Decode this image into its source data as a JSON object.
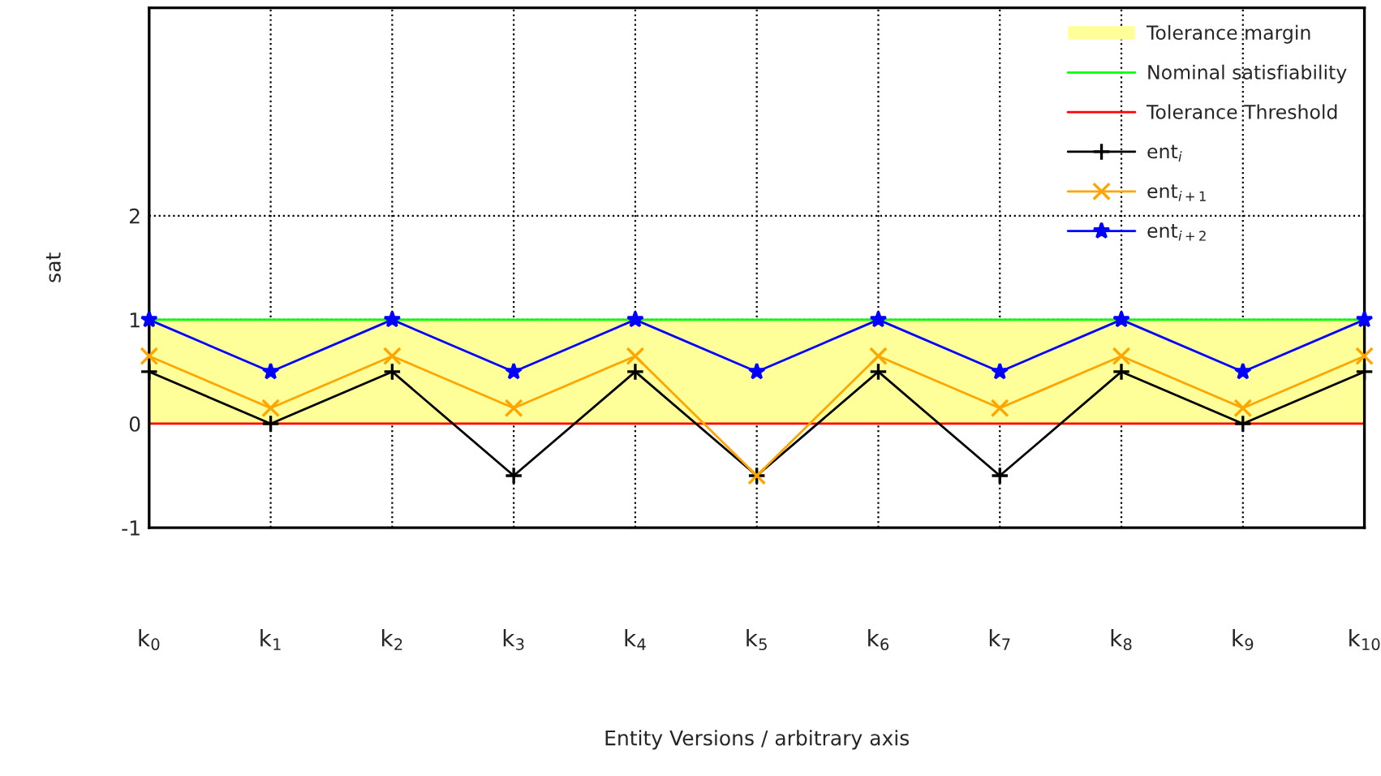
{
  "chart_data": {
    "type": "line",
    "xlabel": "Entity Versions / arbitrary axis",
    "ylabel": "sat",
    "categories": [
      "k$_{0}$",
      "k$_{1}$",
      "k$_{2}$",
      "k$_{3}$",
      "k$_{4}$",
      "k$_{5}$",
      "k$_{6}$",
      "k$_{7}$",
      "k$_{8}$",
      "k$_{9}$",
      "k$_{10}$"
    ],
    "series": [
      {
        "name": "ent$_{i}$",
        "color": "#000000",
        "marker": "cross",
        "values": [
          0.5,
          0,
          0.5,
          -0.5,
          0.5,
          -0.5,
          0.5,
          -0.5,
          0.5,
          0,
          0.5
        ]
      },
      {
        "name": "ent$_{i+1}$",
        "color": "#ffa500",
        "marker": "x",
        "values": [
          0.65,
          0.15,
          0.65,
          0.15,
          0.65,
          -0.5,
          0.65,
          0.15,
          0.65,
          0.15,
          0.65
        ]
      },
      {
        "name": "ent$_{i+2}$",
        "color": "#0000ff",
        "marker": "star",
        "values": [
          1,
          0.5,
          1,
          0.5,
          1,
          0.5,
          1,
          0.5,
          1,
          0.5,
          1
        ]
      }
    ],
    "bands": [
      {
        "axis": "y",
        "from": 0,
        "to": 1,
        "label": "Tolerance margin",
        "color": "#ffff99"
      }
    ],
    "ref_lines": [
      {
        "axis": "y",
        "value": 1,
        "label": "Nominal satisfiability",
        "color": "#00ff00"
      },
      {
        "axis": "y",
        "value": 0,
        "label": "Tolerance Threshold",
        "color": "#ff0000"
      }
    ],
    "ylim": [
      -1,
      4
    ],
    "yticks": [
      -1,
      0,
      1,
      2
    ],
    "grid": true,
    "legend": "top right",
    "line_style": "solid"
  }
}
